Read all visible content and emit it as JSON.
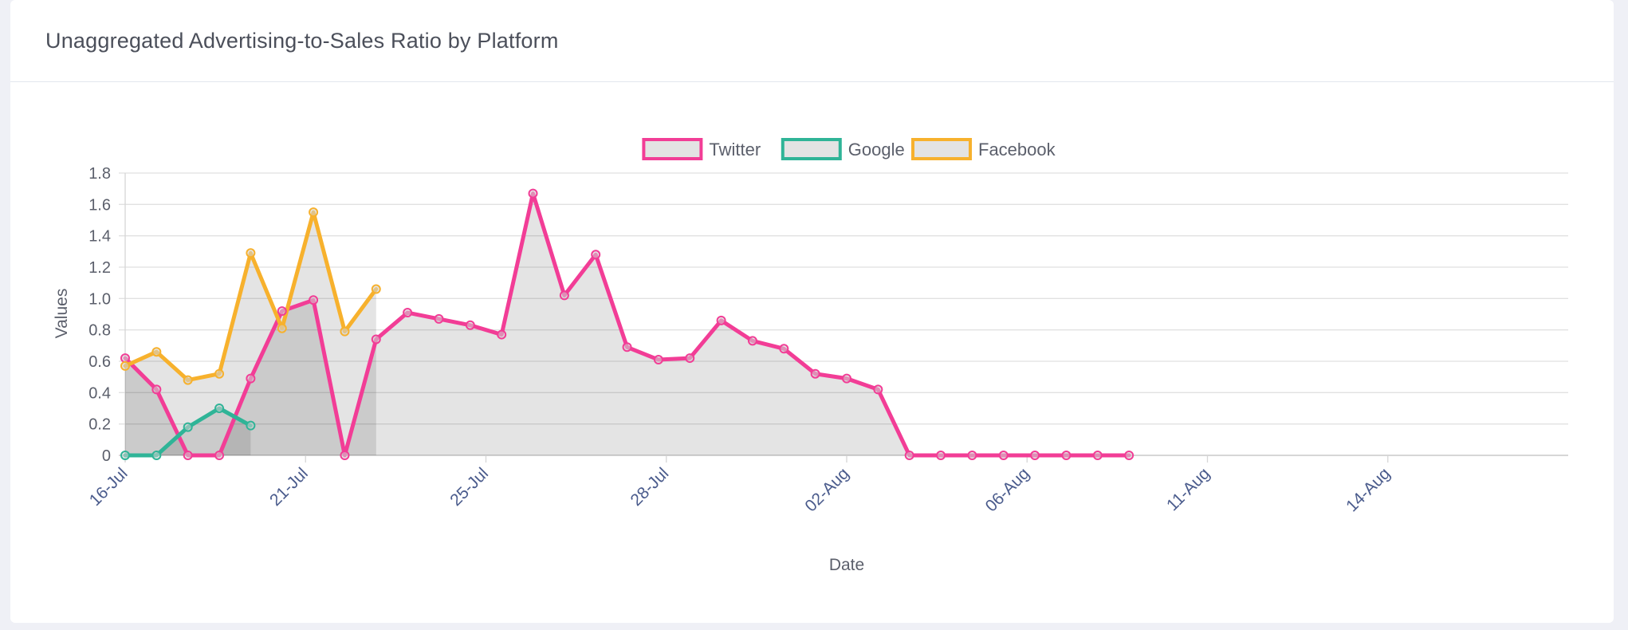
{
  "card": {
    "title": "Unaggregated Advertising-to-Sales Ratio by Platform"
  },
  "chart_data": {
    "type": "line",
    "title": "Unaggregated Advertising-to-Sales Ratio by Platform",
    "xlabel": "Date",
    "ylabel": "Values",
    "ylim": [
      0,
      1.8
    ],
    "yticks": [
      "0",
      "0.2",
      "0.4",
      "0.6",
      "0.8",
      "1.0",
      "1.2",
      "1.4",
      "1.6",
      "1.8"
    ],
    "x_tick_labels": [
      "16-Jul",
      "21-Jul",
      "25-Jul",
      "28-Jul",
      "02-Aug",
      "06-Aug",
      "11-Aug",
      "14-Aug"
    ],
    "x_range_days": [
      0,
      46
    ],
    "legend_position": "top-center",
    "fill": true,
    "series": [
      {
        "name": "Twitter",
        "color": "#f23d96",
        "x_days": [
          0,
          1,
          2,
          3,
          4,
          5,
          6,
          7,
          8,
          9,
          10,
          11,
          12,
          13,
          14,
          15,
          16,
          17,
          18,
          19,
          20,
          21,
          22,
          23,
          24,
          25,
          26,
          27,
          28,
          29,
          30,
          31,
          32
        ],
        "values": [
          0.62,
          0.42,
          0,
          0,
          0.49,
          0.92,
          0.99,
          0,
          0.74,
          0.91,
          0.87,
          0.83,
          0.77,
          1.67,
          1.02,
          1.28,
          0.69,
          0.61,
          0.62,
          0.86,
          0.73,
          0.68,
          0.52,
          0.49,
          0.42,
          0,
          0,
          0,
          0,
          0,
          0,
          0,
          0
        ]
      },
      {
        "name": "Google",
        "color": "#2fb497",
        "x_days": [
          0,
          1,
          2,
          3,
          4
        ],
        "values": [
          0,
          0,
          0.18,
          0.3,
          0.19
        ]
      },
      {
        "name": "Facebook",
        "color": "#f7b12d",
        "x_days": [
          0,
          1,
          2,
          3,
          4,
          5,
          6,
          7,
          8
        ],
        "values": [
          0.57,
          0.66,
          0.48,
          0.52,
          1.29,
          0.81,
          1.55,
          0.79,
          1.06
        ]
      }
    ]
  }
}
